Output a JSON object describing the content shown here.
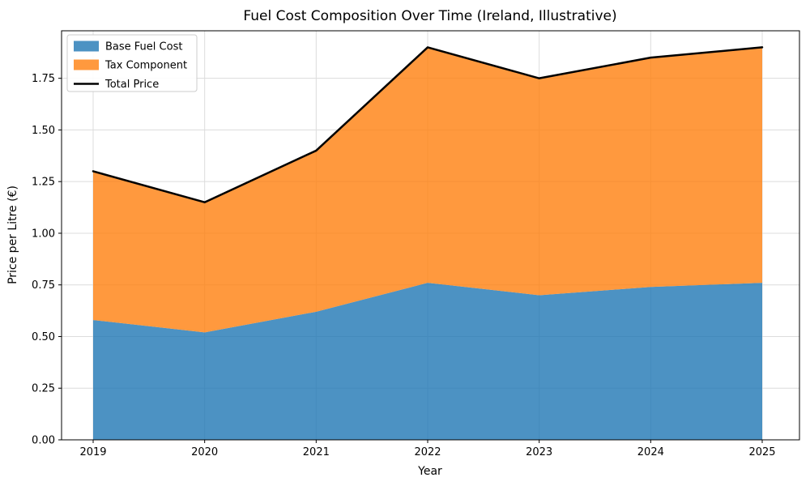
{
  "chart_data": {
    "type": "area",
    "stacked": true,
    "title": "Fuel Cost Composition Over Time (Ireland, Illustrative)",
    "xlabel": "Year",
    "ylabel": "Price per Litre (€)",
    "x": [
      "2019",
      "2020",
      "2021",
      "2022",
      "2023",
      "2024",
      "2025"
    ],
    "series": [
      {
        "name": "Base Fuel Cost",
        "color": "#1f77b4",
        "values": [
          0.58,
          0.52,
          0.62,
          0.76,
          0.7,
          0.74,
          0.76
        ]
      },
      {
        "name": "Tax Component",
        "color": "#ff7f0e",
        "values": [
          0.72,
          0.63,
          0.78,
          1.14,
          1.05,
          1.11,
          1.14
        ]
      }
    ],
    "total_line": {
      "name": "Total Price",
      "color": "#000000",
      "values": [
        1.3,
        1.15,
        1.4,
        1.9,
        1.75,
        1.85,
        1.9
      ]
    },
    "yticks": [
      0.0,
      0.25,
      0.5,
      0.75,
      1.0,
      1.25,
      1.5,
      1.75
    ],
    "ylim": [
      0,
      1.98
    ],
    "fill_opacity": 0.8,
    "grid": true,
    "legend_position": "upper-left",
    "colors": {
      "grid": "#dcdcdc",
      "spine": "#000000",
      "legend_border": "#cccccc",
      "legend_background": "#ffffff"
    }
  }
}
